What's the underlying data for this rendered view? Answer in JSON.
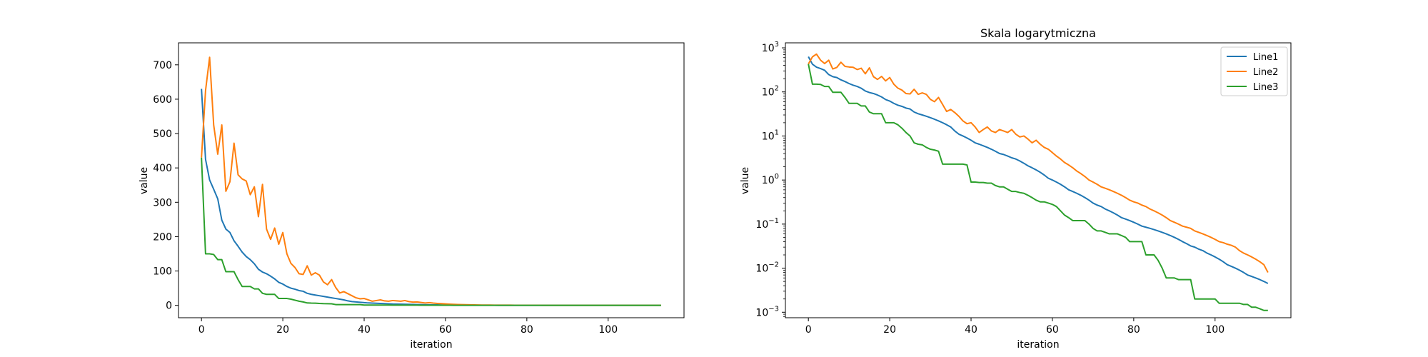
{
  "chart_data": [
    {
      "type": "line",
      "title": "",
      "xlabel": "iteration",
      "ylabel": "value",
      "xlim": [
        -5.65,
        118.65
      ],
      "ylim": [
        -36,
        764
      ],
      "xticks": [
        0,
        20,
        40,
        60,
        80,
        100
      ],
      "yticks": [
        0,
        100,
        200,
        300,
        400,
        500,
        600,
        700
      ],
      "yscale": "linear",
      "grid": false,
      "legend": "none",
      "series": [
        {
          "color": "#1f77b4",
          "values": [
            630,
            425,
            365,
            338,
            310,
            248,
            222,
            212,
            188,
            172,
            155,
            142,
            133,
            121,
            105,
            97,
            92,
            85,
            77,
            67,
            62,
            55,
            50,
            47,
            43,
            41,
            35,
            32,
            30,
            28,
            26,
            24,
            22,
            20,
            18,
            16,
            13,
            11,
            10,
            9,
            8,
            7,
            6.5,
            6,
            5.5,
            5,
            4.5,
            4,
            3.8,
            3.5,
            3.2,
            3,
            2.7,
            2.4,
            2.1,
            1.9,
            1.7,
            1.5,
            1.3,
            1.1,
            1.0,
            0.9,
            0.8,
            0.7,
            0.6,
            0.55,
            0.5,
            0.45,
            0.4,
            0.35,
            0.3,
            0.27,
            0.25,
            0.22,
            0.2,
            0.18,
            0.16,
            0.14,
            0.13,
            0.12,
            0.11,
            0.1,
            0.09,
            0.085,
            0.08,
            0.075,
            0.07,
            0.065,
            0.06,
            0.055,
            0.05,
            0.045,
            0.04,
            0.036,
            0.032,
            0.03,
            0.027,
            0.025,
            0.022,
            0.02,
            0.018,
            0.016,
            0.014,
            0.012,
            0.011,
            0.01,
            0.009,
            0.008,
            0.007,
            0.0065,
            0.006,
            0.0055,
            0.005,
            0.0045
          ]
        },
        {
          "color": "#ff7f0e",
          "values": [
            430,
            625,
            722,
            525,
            440,
            525,
            332,
            360,
            472,
            380,
            368,
            362,
            322,
            345,
            258,
            352,
            222,
            192,
            225,
            178,
            212,
            150,
            122,
            110,
            92,
            90,
            115,
            88,
            95,
            88,
            68,
            60,
            75,
            52,
            36,
            40,
            34,
            28,
            22,
            19,
            20,
            16,
            12,
            14,
            16,
            13,
            12,
            14,
            13,
            12,
            14,
            11,
            9.5,
            10,
            8.5,
            7,
            8,
            6.5,
            5.5,
            5,
            4.2,
            3.5,
            3,
            2.5,
            2.2,
            1.9,
            1.6,
            1.4,
            1.2,
            1.0,
            0.9,
            0.8,
            0.7,
            0.65,
            0.6,
            0.55,
            0.5,
            0.45,
            0.4,
            0.35,
            0.32,
            0.3,
            0.27,
            0.25,
            0.22,
            0.2,
            0.18,
            0.16,
            0.14,
            0.12,
            0.11,
            0.1,
            0.09,
            0.085,
            0.08,
            0.07,
            0.065,
            0.06,
            0.055,
            0.05,
            0.045,
            0.04,
            0.038,
            0.035,
            0.033,
            0.03,
            0.025,
            0.022,
            0.02,
            0.018,
            0.016,
            0.014,
            0.012,
            0.008
          ]
        },
        {
          "color": "#2ca02c",
          "values": [
            430,
            150,
            150,
            148,
            133,
            133,
            98,
            98,
            98,
            75,
            55,
            55,
            55,
            48,
            48,
            35,
            32,
            32,
            32,
            20,
            20,
            20,
            18,
            15,
            12,
            10,
            7,
            6.5,
            6.3,
            5.5,
            5,
            4.8,
            4.5,
            2.3,
            2.3,
            2.3,
            2.3,
            2.3,
            2.3,
            2.2,
            0.9,
            0.9,
            0.88,
            0.88,
            0.85,
            0.85,
            0.75,
            0.7,
            0.7,
            0.62,
            0.55,
            0.55,
            0.52,
            0.5,
            0.45,
            0.4,
            0.35,
            0.32,
            0.32,
            0.3,
            0.28,
            0.25,
            0.2,
            0.16,
            0.14,
            0.12,
            0.12,
            0.12,
            0.12,
            0.1,
            0.08,
            0.07,
            0.07,
            0.065,
            0.06,
            0.06,
            0.06,
            0.055,
            0.05,
            0.04,
            0.04,
            0.04,
            0.04,
            0.02,
            0.02,
            0.02,
            0.015,
            0.01,
            0.006,
            0.006,
            0.006,
            0.0055,
            0.0055,
            0.0055,
            0.0055,
            0.002,
            0.002,
            0.002,
            0.002,
            0.002,
            0.002,
            0.0016,
            0.0016,
            0.0016,
            0.0016,
            0.0016,
            0.0016,
            0.0015,
            0.0015,
            0.0013,
            0.0013,
            0.0012,
            0.0011,
            0.0011
          ]
        }
      ]
    },
    {
      "type": "line",
      "title": "Skala logarytmiczna",
      "xlabel": "iteration",
      "ylabel": "value",
      "xlim": [
        -5.65,
        118.65
      ],
      "ylim": [
        0.00075,
        1300
      ],
      "xticks": [
        0,
        20,
        40,
        60,
        80,
        100
      ],
      "yscale": "log",
      "yticks_exponents": [
        -3,
        -2,
        -1,
        0,
        1,
        2,
        3
      ],
      "grid": false,
      "legend": "top-right",
      "legend_entries": [
        {
          "name": "Line1",
          "color": "#1f77b4"
        },
        {
          "name": "Line2",
          "color": "#ff7f0e"
        },
        {
          "name": "Line3",
          "color": "#2ca02c"
        }
      ],
      "series": [
        {
          "name": "Line1",
          "color": "#1f77b4",
          "values": [
            630,
            425,
            365,
            338,
            310,
            248,
            222,
            212,
            188,
            172,
            155,
            142,
            133,
            121,
            105,
            97,
            92,
            85,
            77,
            67,
            62,
            55,
            50,
            47,
            43,
            41,
            35,
            32,
            30,
            28,
            26,
            24,
            22,
            20,
            18,
            16,
            13,
            11,
            10,
            9,
            8,
            7,
            6.5,
            6,
            5.5,
            5,
            4.5,
            4,
            3.8,
            3.5,
            3.2,
            3,
            2.7,
            2.4,
            2.1,
            1.9,
            1.7,
            1.5,
            1.3,
            1.1,
            1.0,
            0.9,
            0.8,
            0.7,
            0.6,
            0.55,
            0.5,
            0.45,
            0.4,
            0.35,
            0.3,
            0.27,
            0.25,
            0.22,
            0.2,
            0.18,
            0.16,
            0.14,
            0.13,
            0.12,
            0.11,
            0.1,
            0.09,
            0.085,
            0.08,
            0.075,
            0.07,
            0.065,
            0.06,
            0.055,
            0.05,
            0.045,
            0.04,
            0.036,
            0.032,
            0.03,
            0.027,
            0.025,
            0.022,
            0.02,
            0.018,
            0.016,
            0.014,
            0.012,
            0.011,
            0.01,
            0.009,
            0.008,
            0.007,
            0.0065,
            0.006,
            0.0055,
            0.005,
            0.0045
          ]
        },
        {
          "name": "Line2",
          "color": "#ff7f0e",
          "values": [
            430,
            625,
            722,
            525,
            440,
            525,
            332,
            360,
            472,
            380,
            368,
            362,
            322,
            345,
            258,
            352,
            222,
            192,
            225,
            178,
            212,
            150,
            122,
            110,
            92,
            90,
            115,
            88,
            95,
            88,
            68,
            60,
            75,
            52,
            36,
            40,
            34,
            28,
            22,
            19,
            20,
            16,
            12,
            14,
            16,
            13,
            12,
            14,
            13,
            12,
            14,
            11,
            9.5,
            10,
            8.5,
            7,
            8,
            6.5,
            5.5,
            5,
            4.2,
            3.5,
            3,
            2.5,
            2.2,
            1.9,
            1.6,
            1.4,
            1.2,
            1.0,
            0.9,
            0.8,
            0.7,
            0.65,
            0.6,
            0.55,
            0.5,
            0.45,
            0.4,
            0.35,
            0.32,
            0.3,
            0.27,
            0.25,
            0.22,
            0.2,
            0.18,
            0.16,
            0.14,
            0.12,
            0.11,
            0.1,
            0.09,
            0.085,
            0.08,
            0.07,
            0.065,
            0.06,
            0.055,
            0.05,
            0.045,
            0.04,
            0.038,
            0.035,
            0.033,
            0.03,
            0.025,
            0.022,
            0.02,
            0.018,
            0.016,
            0.014,
            0.012,
            0.008
          ]
        },
        {
          "name": "Line3",
          "color": "#2ca02c",
          "values": [
            430,
            150,
            150,
            148,
            133,
            133,
            98,
            98,
            98,
            75,
            55,
            55,
            55,
            48,
            48,
            35,
            32,
            32,
            32,
            20,
            20,
            20,
            18,
            15,
            12,
            10,
            7,
            6.5,
            6.3,
            5.5,
            5,
            4.8,
            4.5,
            2.3,
            2.3,
            2.3,
            2.3,
            2.3,
            2.3,
            2.2,
            0.9,
            0.9,
            0.88,
            0.88,
            0.85,
            0.85,
            0.75,
            0.7,
            0.7,
            0.62,
            0.55,
            0.55,
            0.52,
            0.5,
            0.45,
            0.4,
            0.35,
            0.32,
            0.32,
            0.3,
            0.28,
            0.25,
            0.2,
            0.16,
            0.14,
            0.12,
            0.12,
            0.12,
            0.12,
            0.1,
            0.08,
            0.07,
            0.07,
            0.065,
            0.06,
            0.06,
            0.06,
            0.055,
            0.05,
            0.04,
            0.04,
            0.04,
            0.04,
            0.02,
            0.02,
            0.02,
            0.015,
            0.01,
            0.006,
            0.006,
            0.006,
            0.0055,
            0.0055,
            0.0055,
            0.0055,
            0.002,
            0.002,
            0.002,
            0.002,
            0.002,
            0.002,
            0.0016,
            0.0016,
            0.0016,
            0.0016,
            0.0016,
            0.0016,
            0.0015,
            0.0015,
            0.0013,
            0.0013,
            0.0012,
            0.0011,
            0.0011
          ]
        }
      ]
    }
  ]
}
